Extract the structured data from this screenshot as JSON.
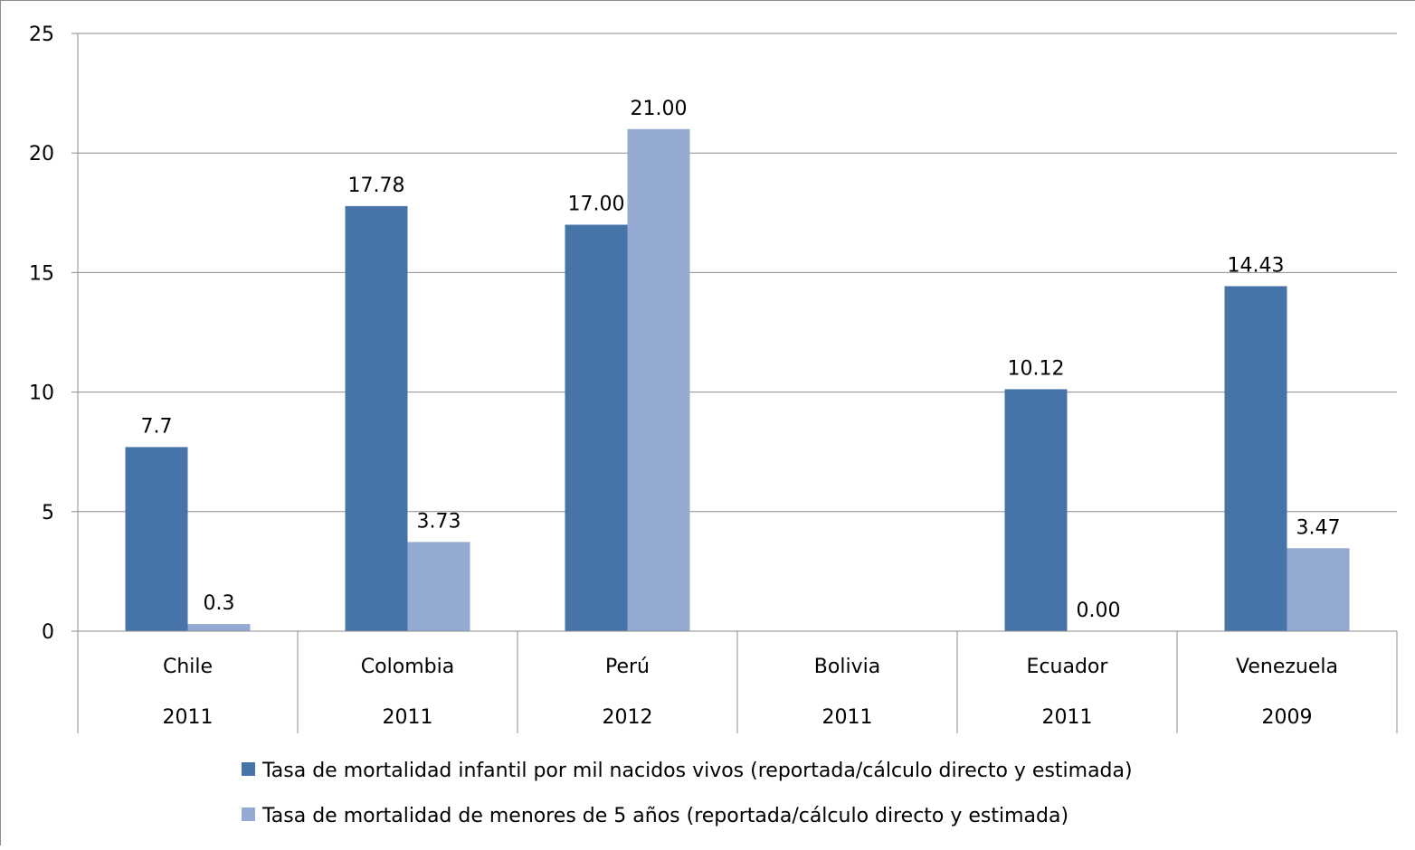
{
  "chart_data": {
    "type": "bar",
    "categories": [
      "Chile",
      "Colombia",
      "Perú",
      "Bolivia",
      "Ecuador",
      "Venezuela"
    ],
    "years": [
      "2011",
      "2011",
      "2012",
      "2011",
      "2011",
      "2009"
    ],
    "series": [
      {
        "name": "Tasa de mortalidad infantil por mil nacidos vivos (reportada/cálculo directo y estimada)",
        "color": "#4674A8",
        "values": [
          7.7,
          17.78,
          17.0,
          null,
          10.12,
          14.43
        ],
        "labels": [
          "7.7",
          "17.78",
          "17.00",
          "",
          "10.12",
          "14.43"
        ]
      },
      {
        "name": "Tasa de mortalidad de menores de 5 años (reportada/cálculo directo y estimada)",
        "color": "#95AAD2",
        "values": [
          0.3,
          3.73,
          21.0,
          null,
          0.0,
          3.47
        ],
        "labels": [
          "0.3",
          "3.73",
          "21.00",
          "",
          "0.00",
          "3.47"
        ]
      }
    ],
    "ylim": [
      0,
      25
    ],
    "yticks": [
      0,
      5,
      10,
      15,
      20,
      25
    ],
    "grid": true,
    "legend_position": "bottom"
  }
}
